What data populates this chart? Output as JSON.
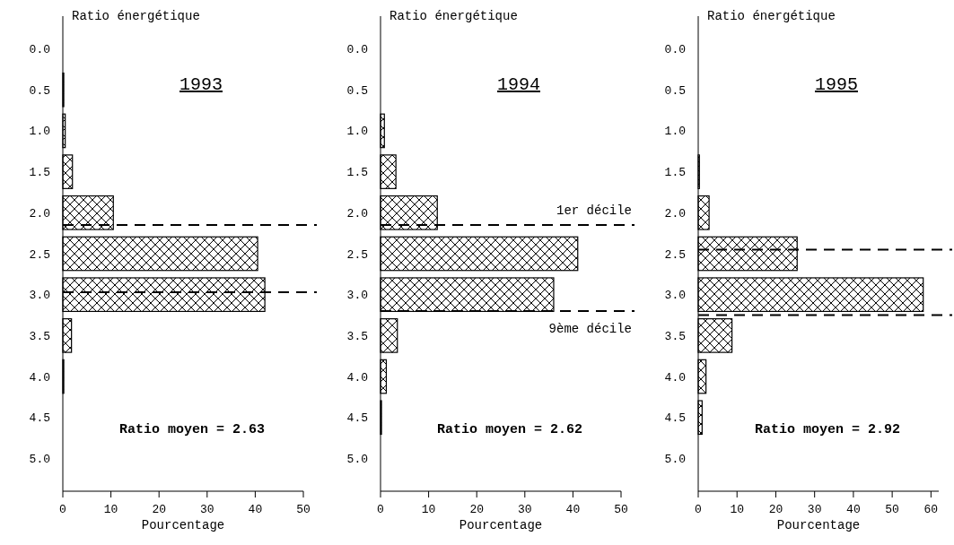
{
  "chart_data": [
    {
      "type": "bar",
      "orientation": "horizontal",
      "title": "1993",
      "ylabel": "Ratio énergétique",
      "xlabel": "Pourcentage",
      "x": [
        0,
        0.5,
        1,
        1.5,
        2,
        2.5,
        3,
        3.5,
        4,
        4.5,
        5
      ],
      "values": [
        0,
        0.2,
        0.5,
        2,
        10.5,
        40.5,
        42,
        1.8,
        0.2,
        0,
        0
      ],
      "color": "#000000",
      "xlim": [
        0,
        50
      ],
      "xticks": [
        0,
        10,
        20,
        30,
        40,
        50
      ],
      "ylim": [
        5.4,
        -0.4
      ],
      "yticks": [
        {
          "value": 0,
          "label": "0.0"
        },
        {
          "value": 0.5,
          "label": "0.5"
        },
        {
          "value": 1,
          "label": "1.0"
        },
        {
          "value": 1.5,
          "label": "1.5"
        },
        {
          "value": 2,
          "label": "2.0"
        },
        {
          "value": 2.5,
          "label": "2.5"
        },
        {
          "value": 3,
          "label": "3.0"
        },
        {
          "value": 3.5,
          "label": "3.5"
        },
        {
          "value": 4,
          "label": "4.0"
        },
        {
          "value": 4.5,
          "label": "4.5"
        },
        {
          "value": 5,
          "label": "5.0"
        }
      ],
      "ref_lines": [
        {
          "axis": "y",
          "value": 2.15,
          "line_style": "dashed"
        },
        {
          "axis": "y",
          "value": 2.97,
          "line_style": "dashed"
        }
      ],
      "annotations": [
        "Ratio moyen = 2.63"
      ]
    },
    {
      "type": "bar",
      "orientation": "horizontal",
      "title": "1994",
      "ylabel": "Ratio énergétique",
      "xlabel": "Pourcentage",
      "x": [
        0,
        0.5,
        1,
        1.5,
        2,
        2.5,
        3,
        3.5,
        4,
        4.5,
        5
      ],
      "values": [
        0,
        0,
        0.8,
        3.2,
        11.8,
        41,
        36,
        3.5,
        1.2,
        0.2,
        0
      ],
      "color": "#000000",
      "xlim": [
        0,
        50
      ],
      "xticks": [
        0,
        10,
        20,
        30,
        40,
        50
      ],
      "ylim": [
        5.4,
        -0.4
      ],
      "yticks": [
        {
          "value": 0,
          "label": "0.0"
        },
        {
          "value": 0.5,
          "label": "0.5"
        },
        {
          "value": 1,
          "label": "1.0"
        },
        {
          "value": 1.5,
          "label": "1.5"
        },
        {
          "value": 2,
          "label": "2.0"
        },
        {
          "value": 2.5,
          "label": "2.5"
        },
        {
          "value": 3,
          "label": "3.0"
        },
        {
          "value": 3.5,
          "label": "3.5"
        },
        {
          "value": 4,
          "label": "4.0"
        },
        {
          "value": 4.5,
          "label": "4.5"
        },
        {
          "value": 5,
          "label": "5.0"
        }
      ],
      "ref_lines": [
        {
          "axis": "y",
          "value": 2.15,
          "label": "1er décile",
          "line_style": "dashed"
        },
        {
          "axis": "y",
          "value": 3.2,
          "label": "9ème décile",
          "line_style": "dashed"
        }
      ],
      "annotations": [
        "Ratio moyen = 2.62"
      ]
    },
    {
      "type": "bar",
      "orientation": "horizontal",
      "title": "1995",
      "ylabel": "Ratio énergétique",
      "xlabel": "Pourcentage",
      "x": [
        0,
        0.5,
        1,
        1.5,
        2,
        2.5,
        3,
        3.5,
        4,
        4.5,
        5
      ],
      "values": [
        0,
        0,
        0,
        0.3,
        2.8,
        25.5,
        58,
        8.7,
        2,
        1,
        0
      ],
      "color": "#000000",
      "xlim": [
        0,
        62
      ],
      "xticks": [
        0,
        10,
        20,
        30,
        40,
        50,
        60
      ],
      "ylim": [
        5.4,
        -0.4
      ],
      "yticks": [
        {
          "value": 0,
          "label": "0.0"
        },
        {
          "value": 0.5,
          "label": "0.5"
        },
        {
          "value": 1,
          "label": "1.0"
        },
        {
          "value": 1.5,
          "label": "1.5"
        },
        {
          "value": 2,
          "label": "2.0"
        },
        {
          "value": 2.5,
          "label": "2.5"
        },
        {
          "value": 3,
          "label": "3.0"
        },
        {
          "value": 3.5,
          "label": "3.5"
        },
        {
          "value": 4,
          "label": "4.0"
        },
        {
          "value": 4.5,
          "label": "4.5"
        },
        {
          "value": 5,
          "label": "5.0"
        }
      ],
      "ref_lines": [
        {
          "axis": "y",
          "value": 2.45,
          "line_style": "dashed"
        },
        {
          "axis": "y",
          "value": 3.25,
          "line_style": "dashed"
        }
      ],
      "annotations": [
        "Ratio moyen = 2.92"
      ]
    }
  ]
}
